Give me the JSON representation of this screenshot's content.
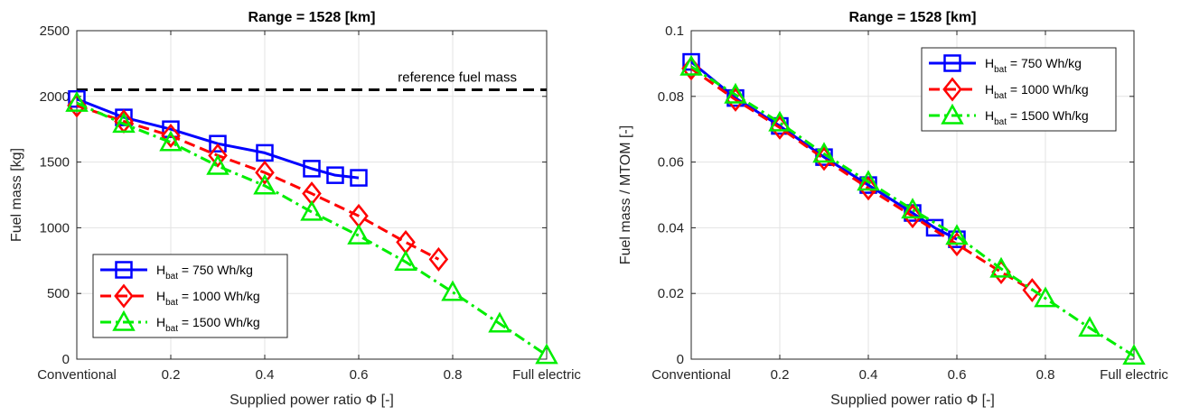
{
  "chart_data": [
    {
      "type": "line",
      "title": "Range = 1528 [km]",
      "xlabel": "Supplied power ratio Φ [-]",
      "ylabel": "Fuel mass [kg]",
      "xlim": [
        0,
        1
      ],
      "ylim": [
        0,
        2500
      ],
      "xticks": [
        {
          "value": 0,
          "label": "Conventional"
        },
        {
          "value": 0.2,
          "label": "0.2"
        },
        {
          "value": 0.4,
          "label": "0.4"
        },
        {
          "value": 0.6,
          "label": "0.6"
        },
        {
          "value": 0.8,
          "label": "0.8"
        },
        {
          "value": 1,
          "label": "Full electric"
        }
      ],
      "yticks": [
        0,
        500,
        1000,
        1500,
        2000,
        2500
      ],
      "grid": true,
      "legend_position": "bottom-left",
      "reference": {
        "value": 2050,
        "label": "reference fuel mass",
        "color": "#000000"
      },
      "series": [
        {
          "name_main": "H",
          "name_sub": "bat",
          "name_rest": " = 750 Wh/kg",
          "color": "#0000ff",
          "marker": "square",
          "dash": "solid",
          "x": [
            0,
            0.1,
            0.2,
            0.3,
            0.4,
            0.5,
            0.55,
            0.6
          ],
          "y": [
            1980,
            1840,
            1750,
            1640,
            1570,
            1450,
            1400,
            1380
          ]
        },
        {
          "name_main": "H",
          "name_sub": "bat",
          "name_rest": " = 1000 Wh/kg",
          "color": "#ff0000",
          "marker": "diamond",
          "dash": "dashed",
          "x": [
            0,
            0.1,
            0.2,
            0.3,
            0.4,
            0.5,
            0.6,
            0.7,
            0.77
          ],
          "y": [
            1930,
            1810,
            1700,
            1550,
            1420,
            1260,
            1090,
            890,
            760
          ]
        },
        {
          "name_main": "H",
          "name_sub": "bat",
          "name_rest": " = 1500 Wh/kg",
          "color": "#00ee00",
          "marker": "triangle",
          "dash": "dashdot",
          "x": [
            0,
            0.1,
            0.2,
            0.3,
            0.4,
            0.5,
            0.6,
            0.7,
            0.8,
            0.9,
            1.0
          ],
          "y": [
            1950,
            1790,
            1650,
            1470,
            1320,
            1120,
            940,
            740,
            510,
            270,
            30
          ]
        }
      ]
    },
    {
      "type": "line",
      "title": "Range = 1528 [km]",
      "xlabel": "Supplied power ratio Φ [-]",
      "ylabel": "Fuel mass / MTOM [-]",
      "xlim": [
        0,
        1
      ],
      "ylim": [
        0,
        0.1
      ],
      "xticks": [
        {
          "value": 0,
          "label": "Conventional"
        },
        {
          "value": 0.2,
          "label": "0.2"
        },
        {
          "value": 0.4,
          "label": "0.4"
        },
        {
          "value": 0.6,
          "label": "0.6"
        },
        {
          "value": 0.8,
          "label": "0.8"
        },
        {
          "value": 1,
          "label": "Full electric"
        }
      ],
      "yticks": [
        {
          "value": 0,
          "label": "0"
        },
        {
          "value": 0.02,
          "label": "0.02"
        },
        {
          "value": 0.04,
          "label": "0.04"
        },
        {
          "value": 0.06,
          "label": "0.06"
        },
        {
          "value": 0.08,
          "label": "0.08"
        },
        {
          "value": 0.1,
          "label": "0.1"
        }
      ],
      "grid": true,
      "legend_position": "top-right",
      "series": [
        {
          "name_main": "H",
          "name_sub": "bat",
          "name_rest": " = 750 Wh/kg",
          "color": "#0000ff",
          "marker": "square",
          "dash": "solid",
          "x": [
            0,
            0.1,
            0.2,
            0.3,
            0.4,
            0.5,
            0.55,
            0.6
          ],
          "y": [
            0.0905,
            0.0795,
            0.071,
            0.0615,
            0.053,
            0.0445,
            0.04,
            0.0365
          ]
        },
        {
          "name_main": "H",
          "name_sub": "bat",
          "name_rest": " = 1000 Wh/kg",
          "color": "#ff0000",
          "marker": "diamond",
          "dash": "dashed",
          "x": [
            0,
            0.1,
            0.2,
            0.3,
            0.4,
            0.5,
            0.6,
            0.7,
            0.77
          ],
          "y": [
            0.0885,
            0.079,
            0.0705,
            0.061,
            0.052,
            0.0435,
            0.035,
            0.0265,
            0.021
          ]
        },
        {
          "name_main": "H",
          "name_sub": "bat",
          "name_rest": " = 1500 Wh/kg",
          "color": "#00ee00",
          "marker": "triangle",
          "dash": "dashdot",
          "x": [
            0,
            0.1,
            0.2,
            0.3,
            0.4,
            0.5,
            0.6,
            0.7,
            0.8,
            0.9,
            1.0
          ],
          "y": [
            0.089,
            0.0805,
            0.072,
            0.0625,
            0.054,
            0.0455,
            0.0375,
            0.0275,
            0.0185,
            0.0095,
            0.001
          ]
        }
      ]
    }
  ]
}
